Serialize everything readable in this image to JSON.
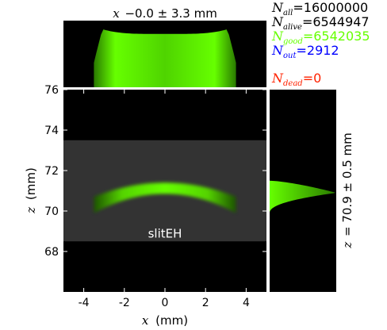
{
  "chart_data": {
    "type": "heatmap",
    "title_top": "−0.0 ± 3.3 mm",
    "title_top_var": "x",
    "title_right": "= 70.9 ± 0.5 mm",
    "title_right_var": "z",
    "xlabel_var": "x",
    "xlabel_unit": "(mm)",
    "ylabel_var": "z",
    "ylabel_unit": "(mm)",
    "xlim": [
      -5.0,
      5.0
    ],
    "ylim": [
      66.0,
      76.0
    ],
    "xticks": [
      -4,
      -2,
      0,
      2,
      4
    ],
    "yticks": [
      68,
      70,
      72,
      74,
      76
    ],
    "xtick_labels": [
      "-4",
      "-2",
      "0",
      "2",
      "4"
    ],
    "ytick_labels": [
      "68",
      "70",
      "72",
      "74",
      "76"
    ],
    "footprint": {
      "label": "slitEH",
      "x_range": [
        -5.0,
        5.0
      ],
      "z_range": [
        68.5,
        73.5
      ]
    },
    "beam_arc": {
      "x_range": [
        -3.5,
        3.5
      ],
      "z_center": 71.0,
      "z_edge": 70.3,
      "thickness": 0.8
    },
    "x_profile": {
      "mean": -0.0,
      "sigma": 3.3,
      "x_range": [
        -3.5,
        3.5
      ]
    },
    "z_profile": {
      "mean": 70.9,
      "sigma": 0.5
    },
    "stats": [
      {
        "label_main": "N",
        "label_sub": "all",
        "value": "16000000",
        "color": "#000000"
      },
      {
        "label_main": "N",
        "label_sub": "alive",
        "value": "6544947",
        "color": "#000000"
      },
      {
        "label_main": "N",
        "label_sub": "good",
        "value": "6542035",
        "color": "#66ff00"
      },
      {
        "label_main": "N",
        "label_sub": "out",
        "value": "2912",
        "color": "#0000ff"
      },
      {
        "label_main": "N",
        "label_sub": "dead",
        "value": "0",
        "color": "#ff2200"
      }
    ],
    "colors": {
      "beam": "#66ff00",
      "background": "#000000",
      "footprint": "#333333"
    }
  }
}
